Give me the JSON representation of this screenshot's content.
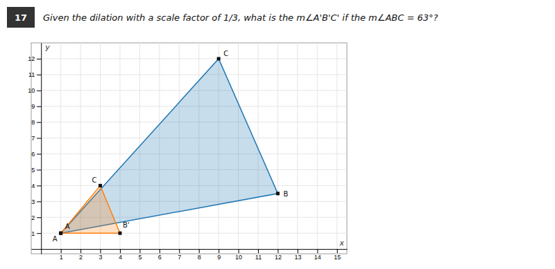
{
  "chart_data": {
    "type": "polygon",
    "title": "Given the dilation with a scale factor of 1/3, what is the m∠A'B'C' if the m∠ABC = 63°?",
    "annotations": [
      "17"
    ],
    "x_label": "x",
    "y_label": "y",
    "series": [
      {
        "x": [
          1,
          12,
          9
        ],
        "values": [
          1,
          3.5,
          12
        ],
        "labels": [
          "A",
          "B",
          "C"
        ]
      },
      {
        "x": [
          1,
          4,
          3
        ],
        "values": [
          1,
          1,
          4
        ],
        "labels": [
          "A",
          "B'",
          "C"
        ]
      }
    ],
    "xlim": [
      -0.5,
      15.5
    ],
    "ylim": [
      -0.3,
      13.0
    ],
    "xticks": [
      1,
      2,
      3,
      4,
      5,
      6,
      7,
      8,
      9,
      10,
      11,
      12,
      13,
      14,
      15
    ],
    "yticks": [
      1,
      2,
      3,
      4,
      5,
      6,
      7,
      8,
      9,
      10,
      11,
      12
    ],
    "grid": true
  }
}
